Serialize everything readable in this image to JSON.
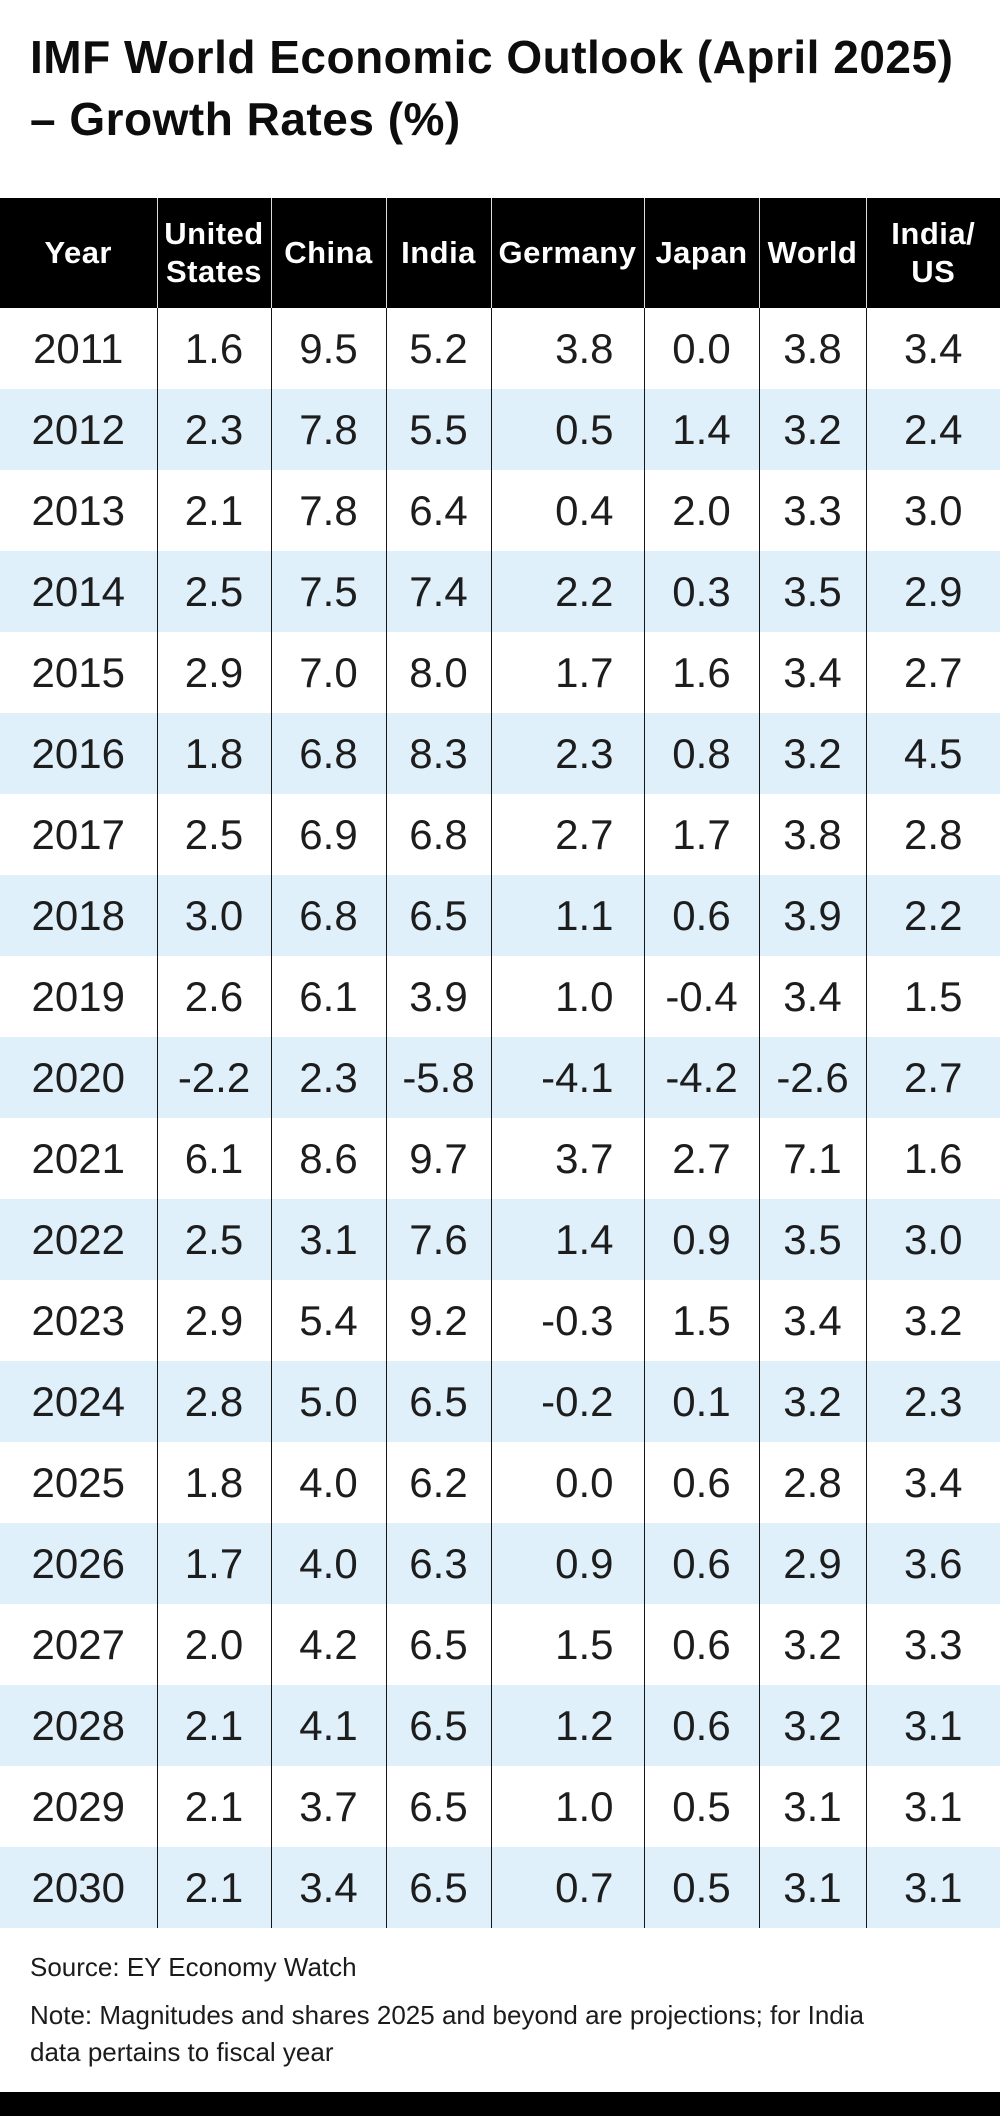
{
  "page": {
    "title": "IMF World Economic Outlook (April 2025) – Growth Rates (%)",
    "source": "Source: EY Economy Watch",
    "note": "Note: Magnitudes and shares 2025 and beyond are projections; for India\ndata pertains to fiscal year"
  },
  "colors": {
    "header_bg": "#000000",
    "header_text": "#ffffff",
    "row_bg": "#ffffff",
    "row_alt_bg": "#dff0fb",
    "body_text": "#1d1d1d",
    "divider": "#161616",
    "bottom_bar": "#000000"
  },
  "chart_data": {
    "type": "table",
    "title": "IMF World Economic Outlook (April 2025) – Growth Rates (%)",
    "columns": [
      "Year",
      "United\nStates",
      "China",
      "India",
      "Germany",
      "Japan",
      "World",
      "India/\nUS"
    ],
    "rows": [
      [
        "2011",
        "1.6",
        "9.5",
        "5.2",
        "3.8",
        "0.0",
        "3.8",
        "3.4"
      ],
      [
        "2012",
        "2.3",
        "7.8",
        "5.5",
        "0.5",
        "1.4",
        "3.2",
        "2.4"
      ],
      [
        "2013",
        "2.1",
        "7.8",
        "6.4",
        "0.4",
        "2.0",
        "3.3",
        "3.0"
      ],
      [
        "2014",
        "2.5",
        "7.5",
        "7.4",
        "2.2",
        "0.3",
        "3.5",
        "2.9"
      ],
      [
        "2015",
        "2.9",
        "7.0",
        "8.0",
        "1.7",
        "1.6",
        "3.4",
        "2.7"
      ],
      [
        "2016",
        "1.8",
        "6.8",
        "8.3",
        "2.3",
        "0.8",
        "3.2",
        "4.5"
      ],
      [
        "2017",
        "2.5",
        "6.9",
        "6.8",
        "2.7",
        "1.7",
        "3.8",
        "2.8"
      ],
      [
        "2018",
        "3.0",
        "6.8",
        "6.5",
        "1.1",
        "0.6",
        "3.9",
        "2.2"
      ],
      [
        "2019",
        "2.6",
        "6.1",
        "3.9",
        "1.0",
        "-0.4",
        "3.4",
        "1.5"
      ],
      [
        "2020",
        "-2.2",
        "2.3",
        "-5.8",
        "-4.1",
        "-4.2",
        "-2.6",
        "2.7"
      ],
      [
        "2021",
        "6.1",
        "8.6",
        "9.7",
        "3.7",
        "2.7",
        "7.1",
        "1.6"
      ],
      [
        "2022",
        "2.5",
        "3.1",
        "7.6",
        "1.4",
        "0.9",
        "3.5",
        "3.0"
      ],
      [
        "2023",
        "2.9",
        "5.4",
        "9.2",
        "-0.3",
        "1.5",
        "3.4",
        "3.2"
      ],
      [
        "2024",
        "2.8",
        "5.0",
        "6.5",
        "-0.2",
        "0.1",
        "3.2",
        "2.3"
      ],
      [
        "2025",
        "1.8",
        "4.0",
        "6.2",
        "0.0",
        "0.6",
        "2.8",
        "3.4"
      ],
      [
        "2026",
        "1.7",
        "4.0",
        "6.3",
        "0.9",
        "0.6",
        "2.9",
        "3.6"
      ],
      [
        "2027",
        "2.0",
        "4.2",
        "6.5",
        "1.5",
        "0.6",
        "3.2",
        "3.3"
      ],
      [
        "2028",
        "2.1",
        "4.1",
        "6.5",
        "1.2",
        "0.6",
        "3.2",
        "3.1"
      ],
      [
        "2029",
        "2.1",
        "3.7",
        "6.5",
        "1.0",
        "0.5",
        "3.1",
        "3.1"
      ],
      [
        "2030",
        "2.1",
        "3.4",
        "6.5",
        "0.7",
        "0.5",
        "3.1",
        "3.1"
      ]
    ]
  }
}
